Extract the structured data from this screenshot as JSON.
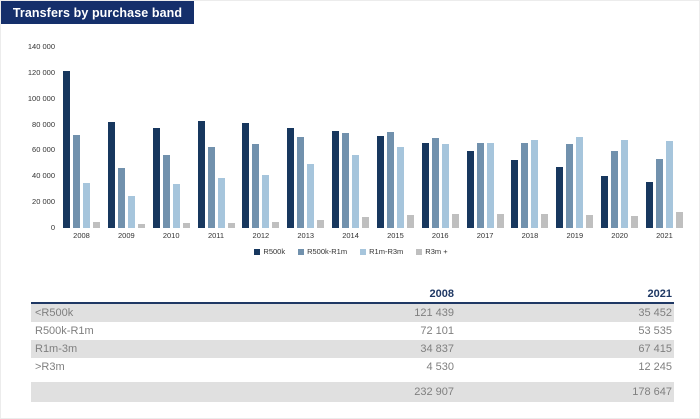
{
  "title": "Transfers by purchase band",
  "colors": {
    "title_bg": "#152f6b",
    "header_navy": "#1f3864",
    "series": [
      "#17375e",
      "#7191ad",
      "#a6c5dc",
      "#bfbfbf"
    ],
    "row_gray": "#e0e0e0",
    "table_text": "#7f7f7f"
  },
  "chart_data": {
    "type": "bar",
    "title": "Transfers by purchase band",
    "categories": [
      "2008",
      "2009",
      "2010",
      "2011",
      "2012",
      "2013",
      "2014",
      "2015",
      "2016",
      "2017",
      "2018",
      "2019",
      "2020",
      "2021"
    ],
    "series": [
      {
        "name": "R500k",
        "values": [
          121439,
          82000,
          77600,
          82800,
          81200,
          77600,
          75000,
          71400,
          66000,
          59600,
          52800,
          46900,
          40500,
          35452
        ]
      },
      {
        "name": "R500k-R1m",
        "values": [
          72101,
          46700,
          56700,
          62700,
          64700,
          70400,
          73200,
          74300,
          69600,
          66000,
          65700,
          65000,
          59300,
          53535
        ]
      },
      {
        "name": "R1m-R3m",
        "values": [
          34837,
          25000,
          34000,
          38400,
          41200,
          49300,
          56700,
          62400,
          65200,
          66000,
          67800,
          70100,
          68100,
          67415
        ]
      },
      {
        "name": "R3m +",
        "values": [
          4530,
          3100,
          3600,
          3600,
          4600,
          6200,
          8500,
          10300,
          11100,
          11000,
          10800,
          10300,
          9300,
          12245
        ]
      }
    ],
    "xlabel": "",
    "ylabel": "",
    "ylim": [
      0,
      140000
    ],
    "yticks": [
      "140 000",
      "120 000",
      "100 000",
      "80 000",
      "60 000",
      "40 000",
      "20 000",
      "0"
    ],
    "grid": false,
    "legend_position": "bottom"
  },
  "table": {
    "columns": [
      "",
      "2008",
      "2021"
    ],
    "rows": [
      {
        "label": "<R500k",
        "values": [
          "121 439",
          "35 452"
        ]
      },
      {
        "label": "R500k-R1m",
        "values": [
          "72 101",
          "53 535"
        ]
      },
      {
        "label": "R1m-3m",
        "values": [
          "34 837",
          "67 415"
        ]
      },
      {
        "label": ">R3m",
        "values": [
          "4 530",
          "12 245"
        ]
      }
    ],
    "total": {
      "label": "",
      "values": [
        "232 907",
        "178 647"
      ]
    }
  }
}
